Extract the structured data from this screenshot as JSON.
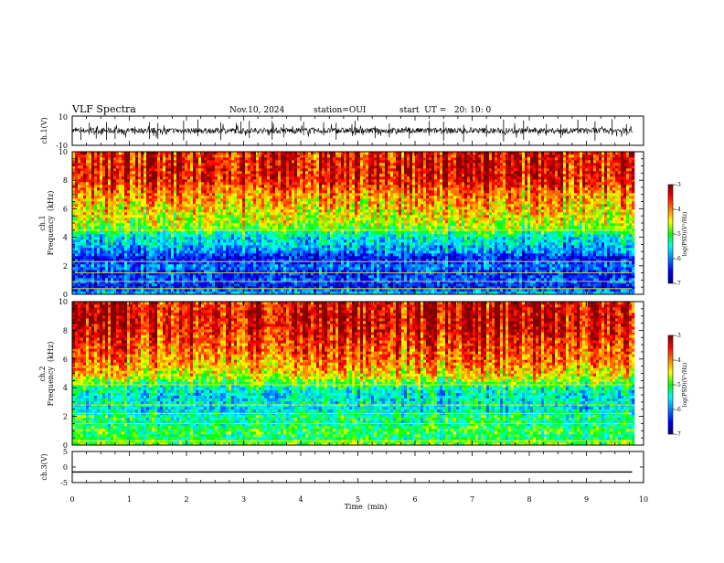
{
  "header": {
    "title": "VLF Spectra",
    "date": "Nov.10, 2024",
    "station": "station=OUI",
    "start_ut": "start  UT =   20: 10: 0"
  },
  "chart_data": [
    {
      "type": "line",
      "name": "ch1_waveform",
      "ylabel": "ch.1(V)",
      "ylim": [
        -10,
        10
      ],
      "ytick_labels": [
        "10",
        "-10"
      ],
      "xlim": [
        0,
        10
      ],
      "data_extent_min": 9.8,
      "baseline": 0,
      "spike_times": [
        0.15,
        0.3,
        0.42,
        0.6,
        0.75,
        1.1,
        1.35,
        1.5,
        1.95,
        2.2,
        2.6,
        2.95,
        3.1,
        3.5,
        3.7,
        4.05,
        4.4,
        4.62,
        4.95,
        5.3,
        5.55,
        5.9,
        6.25,
        6.5,
        6.85,
        7.25,
        7.55,
        7.9,
        8.3,
        8.55,
        8.85,
        9.15,
        9.45,
        9.7
      ]
    },
    {
      "type": "heatmap",
      "name": "ch1_spectrogram",
      "ylabel_line1": "ch.1",
      "ylabel_line2": "Frequency  (kHz)",
      "ylim": [
        0,
        10
      ],
      "ytick_labels": [
        "0",
        "2",
        "4",
        "6",
        "8",
        "10"
      ],
      "xlim": [
        0,
        10
      ],
      "data_extent_min": 9.8,
      "colorbar": {
        "label": "log(PSD)(V²/Hz)",
        "range": [
          -7,
          -3
        ],
        "tick_labels": [
          "-3",
          "-4",
          "-5",
          "-6",
          "-7"
        ]
      },
      "profile_khz_log_psd": [
        [
          0,
          -5.5
        ],
        [
          0.5,
          -6.5
        ],
        [
          1.0,
          -6.2
        ],
        [
          1.5,
          -6.4
        ],
        [
          2.0,
          -6.0
        ],
        [
          2.5,
          -6.6
        ],
        [
          3.0,
          -6.0
        ],
        [
          3.5,
          -5.7
        ],
        [
          4.0,
          -5.6
        ],
        [
          4.5,
          -5.0
        ],
        [
          5.0,
          -4.7
        ],
        [
          6.0,
          -4.4
        ],
        [
          7.0,
          -4.1
        ],
        [
          8.0,
          -3.6
        ],
        [
          9.0,
          -3.5
        ],
        [
          10.0,
          -3.6
        ]
      ],
      "horizontal_lines_khz": [
        0.4,
        0.9,
        1.5,
        2.3,
        4.5
      ]
    },
    {
      "type": "heatmap",
      "name": "ch2_spectrogram",
      "ylabel_line1": "ch.2",
      "ylabel_line2": "Frequency  (kHz)",
      "ylim": [
        0,
        10
      ],
      "ytick_labels": [
        "0",
        "2",
        "4",
        "6",
        "8",
        "10"
      ],
      "xlim": [
        0,
        10
      ],
      "data_extent_min": 9.8,
      "colorbar": {
        "label": "log(PSD)(V²/Hz)",
        "range": [
          -7,
          -3
        ],
        "tick_labels": [
          "-3",
          "-4",
          "-5",
          "-6",
          "-7"
        ]
      },
      "profile_khz_log_psd": [
        [
          0,
          -4.8
        ],
        [
          0.5,
          -5.2
        ],
        [
          1.0,
          -5.0
        ],
        [
          1.5,
          -5.3
        ],
        [
          2.0,
          -5.2
        ],
        [
          2.5,
          -5.6
        ],
        [
          3.0,
          -5.5
        ],
        [
          3.5,
          -5.6
        ],
        [
          4.0,
          -5.4
        ],
        [
          4.5,
          -4.8
        ],
        [
          5.0,
          -4.4
        ],
        [
          6.0,
          -4.0
        ],
        [
          7.0,
          -3.8
        ],
        [
          8.0,
          -3.5
        ],
        [
          9.0,
          -3.4
        ],
        [
          10.0,
          -3.5
        ]
      ],
      "horizontal_lines_khz": [
        0.3,
        1.5,
        2.2,
        2.8,
        4.2
      ]
    },
    {
      "type": "line",
      "name": "ch3_waveform",
      "ylabel": "ch.3(V)",
      "ylim": [
        -5,
        5
      ],
      "ytick_labels": [
        "5",
        "0",
        "-5"
      ],
      "xlim": [
        0,
        10
      ],
      "data_extent_min": 9.8,
      "values": [
        [
          0,
          -1.6
        ],
        [
          9.8,
          -1.6
        ]
      ]
    }
  ],
  "x_axis": {
    "label": "Time  (min)",
    "tick_labels": [
      "0",
      "1",
      "2",
      "3",
      "4",
      "5",
      "6",
      "7",
      "8",
      "9",
      "10"
    ]
  },
  "colors": {
    "jet": [
      "#000080",
      "#0000ff",
      "#00ffff",
      "#00ff00",
      "#ffff00",
      "#ff0000",
      "#800000"
    ]
  }
}
